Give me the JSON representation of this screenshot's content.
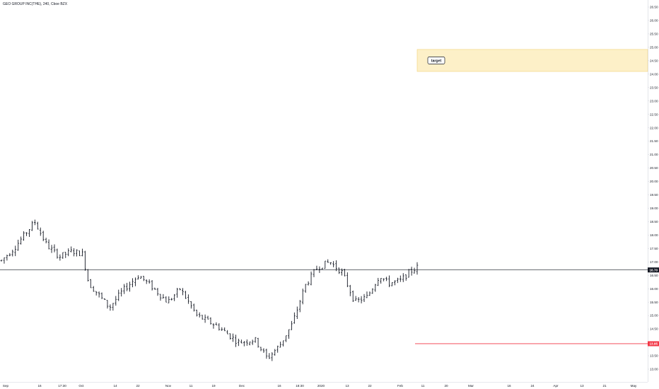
{
  "chart_data": {
    "type": "ohlc",
    "title": "GEO GROUP INC(THE), 240, Cboe BZX",
    "price_axis": {
      "range": [
        12.6,
        27.0
      ],
      "ticks": [
        "13.00",
        "13.50",
        "14.00",
        "14.50",
        "15.00",
        "15.50",
        "16.00",
        "16.50",
        "17.00",
        "17.50",
        "18.00",
        "18.50",
        "19.00",
        "19.50",
        "20.00",
        "20.50",
        "21.00",
        "21.50",
        "22.00",
        "22.50",
        "23.00",
        "23.50",
        "24.00",
        "24.50",
        "25.00",
        "25.50",
        "26.00",
        "26.50"
      ]
    },
    "time_axis": {
      "labels": [
        "Sep",
        "16",
        "17:30",
        "Oct",
        "14",
        "22",
        "Nov",
        "11",
        "19",
        "Dec",
        "16",
        "18:30",
        "2020",
        "13",
        "22",
        "Feb",
        "11",
        "20",
        "Mar",
        "16",
        "24",
        "Apr",
        "13",
        "21",
        "May"
      ]
    },
    "current_price": {
      "label": "16.70",
      "value": 16.7,
      "color": "#131722"
    },
    "stop_level": {
      "label": "13.95",
      "value": 13.95,
      "color": "#f23645"
    },
    "target_zone": {
      "label": "target",
      "low": 24.1,
      "high": 24.92,
      "fill": "#fdf0c8",
      "border": "#f2d27a"
    },
    "bar_color": "#131722",
    "anchors": [
      {
        "t": 0.0,
        "p": 17.05
      },
      {
        "t": 0.03,
        "p": 17.5
      },
      {
        "t": 0.06,
        "p": 18.1
      },
      {
        "t": 0.08,
        "p": 18.5
      },
      {
        "t": 0.11,
        "p": 17.6
      },
      {
        "t": 0.14,
        "p": 17.2
      },
      {
        "t": 0.17,
        "p": 17.4
      },
      {
        "t": 0.195,
        "p": 17.3
      },
      {
        "t": 0.21,
        "p": 16.2
      },
      {
        "t": 0.26,
        "p": 15.3
      },
      {
        "t": 0.29,
        "p": 15.9
      },
      {
        "t": 0.33,
        "p": 16.5
      },
      {
        "t": 0.36,
        "p": 16.1
      },
      {
        "t": 0.4,
        "p": 15.5
      },
      {
        "t": 0.43,
        "p": 16.0
      },
      {
        "t": 0.47,
        "p": 15.0
      },
      {
        "t": 0.52,
        "p": 14.6
      },
      {
        "t": 0.57,
        "p": 14.0
      },
      {
        "t": 0.61,
        "p": 14.1
      },
      {
        "t": 0.64,
        "p": 13.4
      },
      {
        "t": 0.67,
        "p": 13.9
      },
      {
        "t": 0.7,
        "p": 14.7
      },
      {
        "t": 0.73,
        "p": 16.1
      },
      {
        "t": 0.76,
        "p": 16.8
      },
      {
        "t": 0.79,
        "p": 17.0
      },
      {
        "t": 0.82,
        "p": 16.6
      },
      {
        "t": 0.85,
        "p": 15.5
      },
      {
        "t": 0.88,
        "p": 15.7
      },
      {
        "t": 0.91,
        "p": 16.5
      },
      {
        "t": 0.93,
        "p": 16.2
      },
      {
        "t": 0.96,
        "p": 16.3
      },
      {
        "t": 0.98,
        "p": 16.6
      },
      {
        "t": 1.0,
        "p": 16.8
      }
    ],
    "bar_count": 150
  }
}
